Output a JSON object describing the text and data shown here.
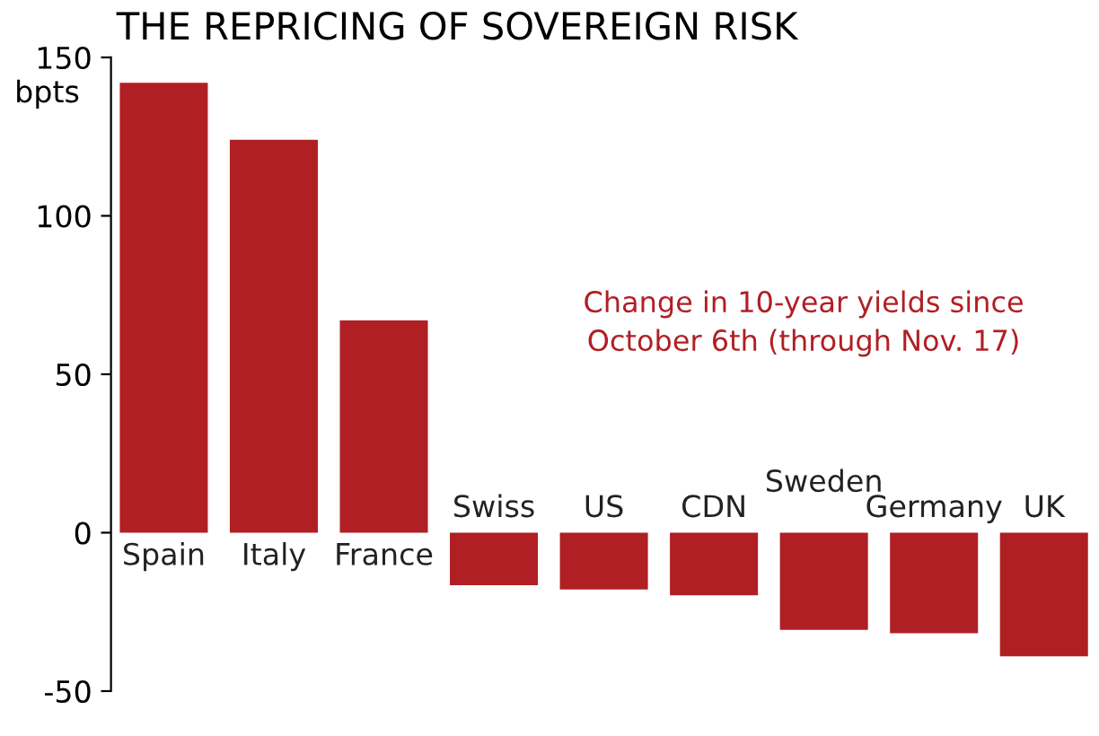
{
  "chart_data": {
    "type": "bar",
    "title": "THE REPRICING OF SOVEREIGN RISK",
    "ylabel": "bpts",
    "categories": [
      "Spain",
      "Italy",
      "France",
      "Swiss",
      "US",
      "CDN",
      "Sweden",
      "Germany",
      "UK"
    ],
    "values": [
      142,
      124,
      67,
      -16.6,
      -17.9,
      -19.8,
      -30.7,
      -31.7,
      -39
    ],
    "color": "#b01f24",
    "ylim": [
      -50,
      150
    ],
    "yticks": [
      -50,
      0,
      50,
      100,
      150
    ],
    "grid": false,
    "annotations": [
      "Change in 10-year yields since\nOctober 6th (through Nov. 17)"
    ]
  }
}
